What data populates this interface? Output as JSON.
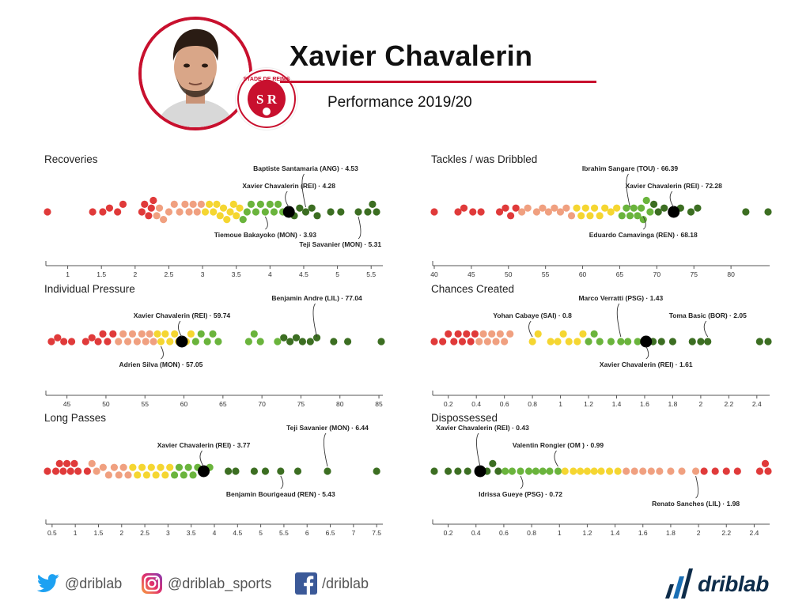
{
  "header": {
    "player_name": "Xavier Chavalerin",
    "subtitle": "Performance 2019/20",
    "crest_text": "STADE DE REIMS"
  },
  "colors": {
    "accent": "#c8102e",
    "red": "#e03a3a",
    "salmon": "#f0a080",
    "yellow": "#f5d631",
    "light_green": "#6ab43c",
    "dark_green": "#3c6e22",
    "highlight": "#000000"
  },
  "footer": {
    "twitter": "@driblab",
    "instagram": "@driblab_sports",
    "facebook": "/driblab",
    "brand": "driblab"
  },
  "chart_data": [
    {
      "type": "scatter",
      "title": "Recoveries",
      "xlim": [
        0.7,
        5.65
      ],
      "ticks": [
        1,
        1.5,
        2,
        2.5,
        3,
        3.5,
        4,
        4.5,
        5,
        5.5
      ],
      "color_order": "low-red-to-high-green",
      "highlight": {
        "label": "Xavier Chavalerin (REI) · 4.28",
        "x": 4.28
      },
      "annotations": [
        {
          "label": "Xavier Chavalerin (REI) · 4.28",
          "x": 4.28,
          "pos": "above"
        },
        {
          "label": "Baptiste Santamaria (ANG) · 4.53",
          "x": 4.53,
          "pos": "above"
        },
        {
          "label": "Tiemoue Bakayoko (MON) · 3.93",
          "x": 3.93,
          "pos": "below"
        },
        {
          "label": "Teji Savanier (MON) · 5.31",
          "x": 5.31,
          "pos": "below"
        }
      ],
      "values": [
        0.7,
        1.37,
        1.52,
        1.62,
        1.74,
        1.82,
        2.1,
        2.14,
        2.2,
        2.24,
        2.27,
        2.32,
        2.36,
        2.42,
        2.5,
        2.58,
        2.66,
        2.74,
        2.8,
        2.86,
        2.92,
        2.98,
        3.04,
        3.1,
        3.16,
        3.21,
        3.26,
        3.31,
        3.36,
        3.41,
        3.46,
        3.5,
        3.55,
        3.6,
        3.66,
        3.72,
        3.79,
        3.86,
        3.93,
        4.0,
        4.06,
        4.12,
        4.19,
        4.28,
        4.36,
        4.44,
        4.53,
        4.62,
        4.7,
        4.9,
        5.05,
        5.31,
        5.45,
        5.52,
        5.58
      ]
    },
    {
      "type": "scatter",
      "title": "Tackles / was Dribbled",
      "xlim": [
        40,
        85
      ],
      "ticks": [
        40,
        45,
        50,
        55,
        60,
        65,
        70,
        75,
        80
      ],
      "color_order": "low-red-to-high-green",
      "highlight": {
        "label": "Xavier Chavalerin (REI) · 72.28",
        "x": 72.28
      },
      "annotations": [
        {
          "label": "Xavier Chavalerin (REI) · 72.28",
          "x": 72.28,
          "pos": "above"
        },
        {
          "label": "Ibrahim Sangare (TOU) · 66.39",
          "x": 66.39,
          "pos": "above"
        },
        {
          "label": "Eduardo Camavinga (REN) · 68.18",
          "x": 68.18,
          "pos": "below"
        }
      ],
      "values": [
        40.0,
        43.2,
        44.0,
        45.2,
        46.3,
        48.8,
        49.6,
        50.3,
        51.0,
        51.8,
        52.6,
        53.8,
        54.6,
        55.4,
        56.2,
        57.0,
        57.8,
        58.5,
        59.2,
        59.8,
        60.4,
        61.0,
        61.6,
        62.3,
        63.0,
        63.8,
        64.6,
        65.3,
        65.9,
        66.39,
        66.9,
        67.4,
        67.9,
        68.18,
        68.6,
        69.1,
        69.6,
        70.2,
        71.0,
        72.28,
        73.2,
        74.6,
        75.5,
        82.0,
        85.0
      ]
    },
    {
      "type": "scatter",
      "title": "Individual Pressure",
      "xlim": [
        42.5,
        85.3
      ],
      "ticks": [
        45,
        50,
        55,
        60,
        65,
        70,
        75,
        80,
        85
      ],
      "color_order": "low-red-to-high-green",
      "highlight": {
        "label": "Xavier Chavalerin (REI) · 59.74",
        "x": 59.74
      },
      "annotations": [
        {
          "label": "Xavier Chavalerin (REI) · 59.74",
          "x": 59.74,
          "pos": "above"
        },
        {
          "label": "Benjamin Andre (LIL) · 77.04",
          "x": 77.04,
          "pos": "above"
        },
        {
          "label": "Adrien Silva (MON) · 57.05",
          "x": 57.05,
          "pos": "below"
        }
      ],
      "values": [
        43.0,
        43.8,
        44.6,
        45.6,
        47.4,
        48.2,
        49.0,
        49.6,
        50.2,
        50.9,
        51.6,
        52.2,
        52.8,
        53.4,
        54.0,
        54.6,
        55.1,
        55.6,
        56.1,
        56.6,
        57.05,
        57.6,
        58.2,
        58.8,
        59.3,
        59.74,
        60.3,
        60.9,
        61.5,
        62.2,
        63.0,
        63.7,
        64.4,
        68.3,
        69.0,
        69.8,
        72.0,
        72.8,
        73.6,
        74.4,
        75.2,
        76.2,
        77.04,
        79.2,
        81.0,
        85.3
      ]
    },
    {
      "type": "scatter",
      "title": "Chances Created",
      "xlim": [
        0.1,
        2.48
      ],
      "ticks": [
        0.2,
        0.4,
        0.6,
        0.8,
        1,
        1.2,
        1.4,
        1.6,
        1.8,
        2,
        2.2,
        2.4
      ],
      "color_order": "low-red-to-high-green",
      "highlight": {
        "label": "Xavier Chavalerin (REI) · 1.61",
        "x": 1.61
      },
      "annotations": [
        {
          "label": "Yohan Cabaye (SAI) · 0.8",
          "x": 0.8,
          "pos": "above"
        },
        {
          "label": "Marco Verratti (PSG) · 1.43",
          "x": 1.43,
          "pos": "above"
        },
        {
          "label": "Toma Basic (BOR) · 2.05",
          "x": 2.05,
          "pos": "above"
        },
        {
          "label": "Xavier Chavalerin (REI) · 1.61",
          "x": 1.61,
          "pos": "below"
        }
      ],
      "values": [
        0.1,
        0.16,
        0.2,
        0.24,
        0.27,
        0.3,
        0.33,
        0.36,
        0.39,
        0.42,
        0.45,
        0.48,
        0.51,
        0.54,
        0.57,
        0.6,
        0.64,
        0.8,
        0.84,
        0.93,
        0.98,
        1.02,
        1.06,
        1.12,
        1.16,
        1.2,
        1.24,
        1.28,
        1.36,
        1.43,
        1.48,
        1.55,
        1.61,
        1.66,
        1.72,
        1.8,
        1.94,
        2.0,
        2.05,
        2.42,
        2.48
      ]
    },
    {
      "type": "scatter",
      "title": "Long Passes",
      "xlim": [
        0.4,
        7.6
      ],
      "ticks": [
        0.5,
        1,
        1.5,
        2,
        2.5,
        3,
        3.5,
        4,
        4.5,
        5,
        5.5,
        6,
        6.5,
        7,
        7.5
      ],
      "color_order": "low-red-to-high-green",
      "highlight": {
        "label": "Xavier Chavalerin (REI) · 3.77",
        "x": 3.77
      },
      "annotations": [
        {
          "label": "Xavier Chavalerin (REI) · 3.77",
          "x": 3.77,
          "pos": "above"
        },
        {
          "label": "Teji Savanier (MON) · 6.44",
          "x": 6.44,
          "pos": "above"
        },
        {
          "label": "Benjamin Bourigeaud (REN) · 5.43",
          "x": 5.43,
          "pos": "below"
        }
      ],
      "values": [
        0.4,
        0.58,
        0.66,
        0.74,
        0.82,
        0.9,
        0.98,
        1.06,
        1.26,
        1.36,
        1.46,
        1.6,
        1.72,
        1.84,
        1.94,
        2.04,
        2.14,
        2.24,
        2.34,
        2.44,
        2.54,
        2.64,
        2.74,
        2.84,
        2.94,
        3.04,
        3.14,
        3.24,
        3.34,
        3.44,
        3.54,
        3.64,
        3.77,
        3.9,
        4.3,
        4.46,
        4.86,
        5.1,
        5.43,
        5.8,
        6.44,
        7.5
      ]
    },
    {
      "type": "scatter",
      "title": "Dispossessed",
      "xlim": [
        0.1,
        2.5
      ],
      "ticks": [
        0.2,
        0.4,
        0.6,
        0.8,
        1,
        1.2,
        1.4,
        1.6,
        1.8,
        2,
        2.2,
        2.4
      ],
      "color_order": "low-green-to-high-red",
      "highlight": {
        "label": "Xavier Chavalerin (REI) · 0.43",
        "x": 0.43
      },
      "annotations": [
        {
          "label": "Valentin Rongier (OM ) · 0.99",
          "x": 0.99,
          "pos": "above"
        },
        {
          "label": "Xavier Chavalerin (REI) · 0.43",
          "x": 0.43,
          "pos": "above"
        },
        {
          "label": "Idrissa Gueye (PSG) · 0.72",
          "x": 0.72,
          "pos": "below"
        },
        {
          "label": "Renato Sanches (LIL) · 1.98",
          "x": 1.98,
          "pos": "below"
        }
      ],
      "values": [
        0.1,
        0.2,
        0.27,
        0.34,
        0.43,
        0.48,
        0.52,
        0.56,
        0.61,
        0.66,
        0.72,
        0.78,
        0.83,
        0.88,
        0.93,
        0.99,
        1.04,
        1.1,
        1.15,
        1.2,
        1.25,
        1.3,
        1.36,
        1.42,
        1.48,
        1.54,
        1.6,
        1.66,
        1.72,
        1.8,
        1.88,
        1.98,
        2.04,
        2.12,
        2.2,
        2.28,
        2.44,
        2.48,
        2.5
      ]
    }
  ]
}
